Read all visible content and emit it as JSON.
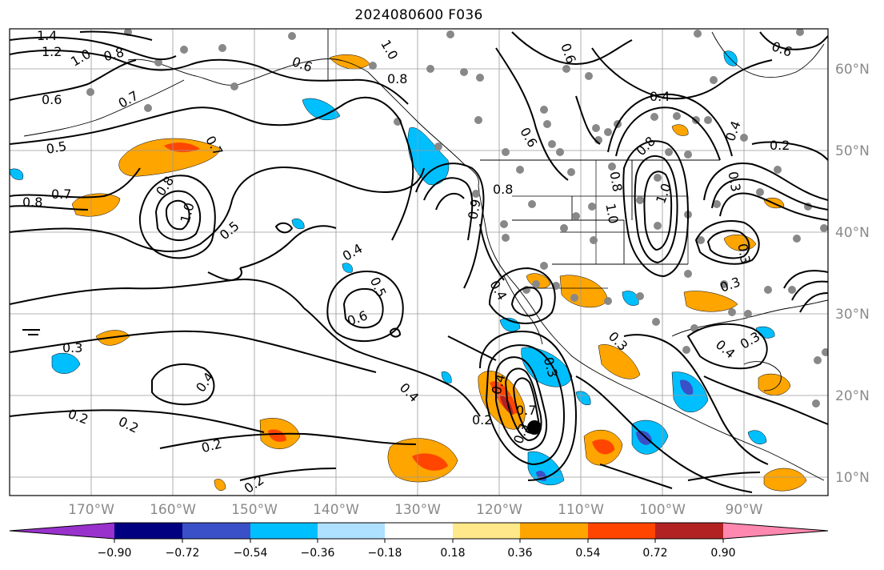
{
  "title": "2024080600 F036",
  "lon_labels": [
    "170°W",
    "160°W",
    "150°W",
    "140°W",
    "130°W",
    "120°W",
    "110°W",
    "100°W",
    "90°W"
  ],
  "lat_labels": [
    "60°N",
    "50°N",
    "40°N",
    "30°N",
    "20°N",
    "10°N"
  ],
  "colorbar": {
    "ticks": [
      "−0.90",
      "−0.72",
      "−0.54",
      "−0.36",
      "−0.18",
      "0.18",
      "0.36",
      "0.54",
      "0.72",
      "0.90"
    ],
    "colors": [
      "#9932cc",
      "#000080",
      "#3a50c8",
      "#00bfff",
      "#aee0ff",
      "#ffffff",
      "#ffe88a",
      "#ffa500",
      "#ff4500",
      "#b22222",
      "#ff88b0"
    ]
  },
  "fill_colors": {
    "orange": "#ffa500",
    "red_orange": "#ff4500",
    "dark_red": "#b22222",
    "sky_blue": "#00bfff",
    "royal_blue": "#3a50c8",
    "yellow": "#ffe88a"
  },
  "contour_labels": [
    {
      "text": "1.4"
    },
    {
      "text": "1.2"
    },
    {
      "text": "1.0"
    },
    {
      "text": "0.8"
    },
    {
      "text": "0.6"
    },
    {
      "text": "0.7"
    },
    {
      "text": "0.5"
    },
    {
      "text": "0.7"
    },
    {
      "text": "0.8"
    },
    {
      "text": "0.7"
    },
    {
      "text": "0.8"
    },
    {
      "text": "1.0"
    },
    {
      "text": "0.5"
    },
    {
      "text": "0.6"
    },
    {
      "text": "0.8"
    },
    {
      "text": "1.0"
    },
    {
      "text": "0.4"
    },
    {
      "text": "0.5"
    },
    {
      "text": "0.6"
    },
    {
      "text": "0.3"
    },
    {
      "text": "0.4"
    },
    {
      "text": "0.2"
    },
    {
      "text": "0.2"
    },
    {
      "text": "0.2"
    },
    {
      "text": "0.2"
    },
    {
      "text": "0.4"
    },
    {
      "text": "0.2"
    },
    {
      "text": "0.4"
    },
    {
      "text": "0.3"
    },
    {
      "text": "0.7"
    },
    {
      "text": "0.3"
    },
    {
      "text": "0.4"
    },
    {
      "text": "0.3"
    },
    {
      "text": "0.8"
    },
    {
      "text": "0.9"
    },
    {
      "text": "0.4"
    },
    {
      "text": "0.8"
    },
    {
      "text": "0.8"
    },
    {
      "text": "1.0"
    },
    {
      "text": "1.0"
    },
    {
      "text": "0.6"
    },
    {
      "text": "0.4"
    },
    {
      "text": "0.2"
    },
    {
      "text": "0.3"
    },
    {
      "text": "0.6"
    },
    {
      "text": "0.6"
    },
    {
      "text": "0.3"
    },
    {
      "text": "0.4"
    },
    {
      "text": "0.3"
    },
    {
      "text": "0.3"
    }
  ]
}
